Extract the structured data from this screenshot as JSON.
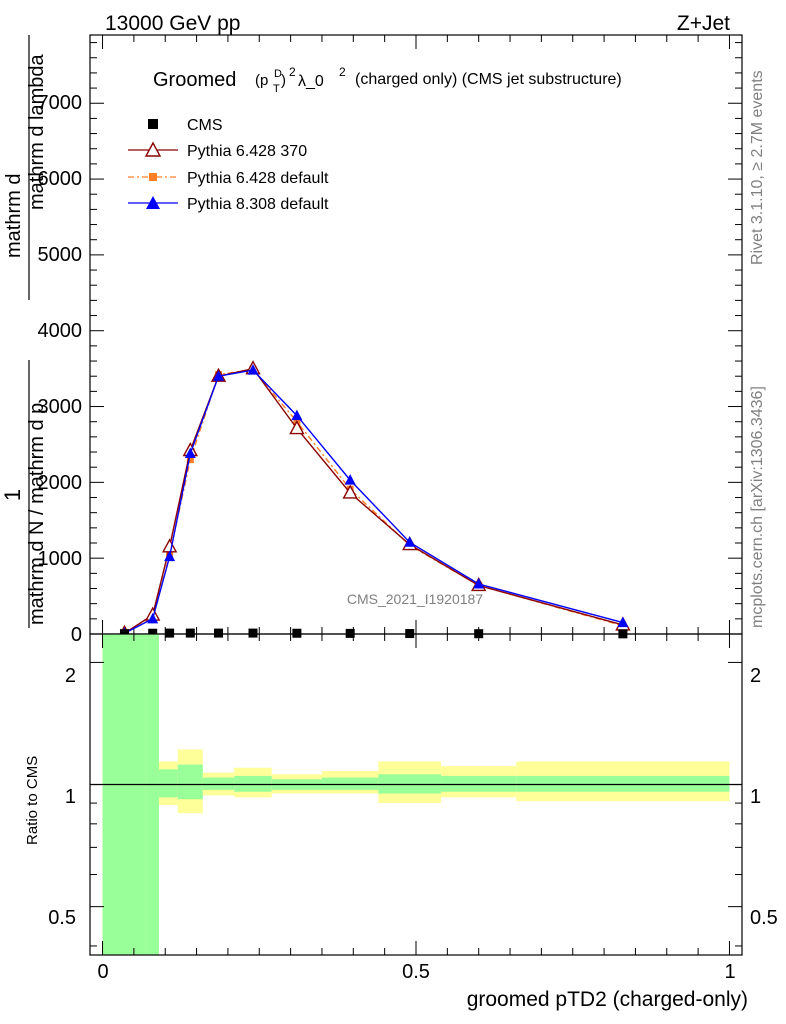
{
  "header": {
    "left": "13000 GeV pp",
    "right": "Z+Jet"
  },
  "side": {
    "rivet": "Rivet 3.1.10, ≥ 2.7M events",
    "mcplots": "mcplots.cern.ch [arXiv:1306.3436]"
  },
  "main_plot": {
    "title_pre": "Groomed",
    "title_sup": "D",
    "title_sub": "T",
    "title_mid": "2",
    "title_lambda": "λ_0",
    "title_lambda_sup": "2",
    "title_post": "(charged only) (CMS jet substructure)",
    "watermark": "CMS_2021_I1920187",
    "ylabel_num_top": "mathrm d",
    "ylabel_num_n": "N",
    "ylabel_den_1": "mathrm d p",
    "ylabel_den_1_sub": "T",
    "ylabel_den_2": "mathrm d lambda",
    "ylabel_frac_left_num": "1",
    "ylabel_frac_left_den": "mathrm d N / mathrm d p",
    "ylabel_frac_left_den_sub": "T",
    "yticks": [
      "0",
      "1000",
      "2000",
      "3000",
      "4000",
      "5000",
      "6000",
      "7000"
    ]
  },
  "ratio_plot": {
    "ylabel": "Ratio to CMS",
    "yticks": [
      "0.5",
      "1",
      "2"
    ],
    "xticks": [
      "0",
      "0.5",
      "1"
    ],
    "xlabel": "groomed pTD2 (charged-only)"
  },
  "legend": [
    {
      "name": "CMS",
      "color": "#000000",
      "marker": "square"
    },
    {
      "name": "Pythia 6.428 370",
      "color": "#8b0000",
      "marker": "triangle-open"
    },
    {
      "name": "Pythia 6.428 default",
      "color": "#ff7f27",
      "marker": "square-small"
    },
    {
      "name": "Pythia 8.308 default",
      "color": "#0000ff",
      "marker": "triangle"
    }
  ],
  "chart_data": {
    "type": "line",
    "x": [
      0.035,
      0.08,
      0.107,
      0.14,
      0.185,
      0.24,
      0.31,
      0.395,
      0.49,
      0.6,
      0.83
    ],
    "series": [
      {
        "name": "CMS",
        "values": [
          5,
          10,
          12,
          12,
          12,
          12,
          10,
          8,
          6,
          4,
          2
        ]
      },
      {
        "name": "Pythia 6.428 370",
        "values": [
          10,
          250,
          1150,
          2420,
          3400,
          3500,
          2710,
          1860,
          1180,
          640,
          120
        ]
      },
      {
        "name": "Pythia 6.428 default",
        "values": [
          10,
          210,
          1040,
          2300,
          3420,
          3490,
          2800,
          1910,
          1170,
          640,
          110
        ]
      },
      {
        "name": "Pythia 8.308 default",
        "values": [
          10,
          200,
          1020,
          2380,
          3400,
          3480,
          2880,
          2030,
          1210,
          660,
          150
        ]
      }
    ],
    "xlim": [
      -0.02,
      1.02
    ],
    "ylim": [
      0,
      7900
    ],
    "ratio": {
      "ylim_log": [
        0.38,
        2.35
      ],
      "bins": [
        {
          "x0": 0.0,
          "x1": 0.07,
          "green": [
            0.38,
            2.35
          ],
          "yellow": [
            0.38,
            2.35
          ]
        },
        {
          "x0": 0.07,
          "x1": 0.09,
          "green": [
            0.38,
            2.35
          ],
          "yellow": [
            0.38,
            2.35
          ]
        },
        {
          "x0": 0.09,
          "x1": 0.12,
          "green": [
            0.93,
            1.09
          ],
          "yellow": [
            0.89,
            1.14
          ]
        },
        {
          "x0": 0.12,
          "x1": 0.16,
          "green": [
            0.92,
            1.12
          ],
          "yellow": [
            0.85,
            1.22
          ]
        },
        {
          "x0": 0.16,
          "x1": 0.21,
          "green": [
            0.97,
            1.04
          ],
          "yellow": [
            0.94,
            1.07
          ]
        },
        {
          "x0": 0.21,
          "x1": 0.27,
          "green": [
            0.96,
            1.05
          ],
          "yellow": [
            0.93,
            1.1
          ]
        },
        {
          "x0": 0.27,
          "x1": 0.35,
          "green": [
            0.97,
            1.03
          ],
          "yellow": [
            0.95,
            1.06
          ]
        },
        {
          "x0": 0.35,
          "x1": 0.44,
          "green": [
            0.97,
            1.04
          ],
          "yellow": [
            0.95,
            1.08
          ]
        },
        {
          "x0": 0.44,
          "x1": 0.54,
          "green": [
            0.95,
            1.06
          ],
          "yellow": [
            0.9,
            1.14
          ]
        },
        {
          "x0": 0.54,
          "x1": 0.66,
          "green": [
            0.96,
            1.05
          ],
          "yellow": [
            0.93,
            1.11
          ]
        },
        {
          "x0": 0.66,
          "x1": 1.0,
          "green": [
            0.96,
            1.05
          ],
          "yellow": [
            0.91,
            1.14
          ]
        }
      ]
    }
  }
}
